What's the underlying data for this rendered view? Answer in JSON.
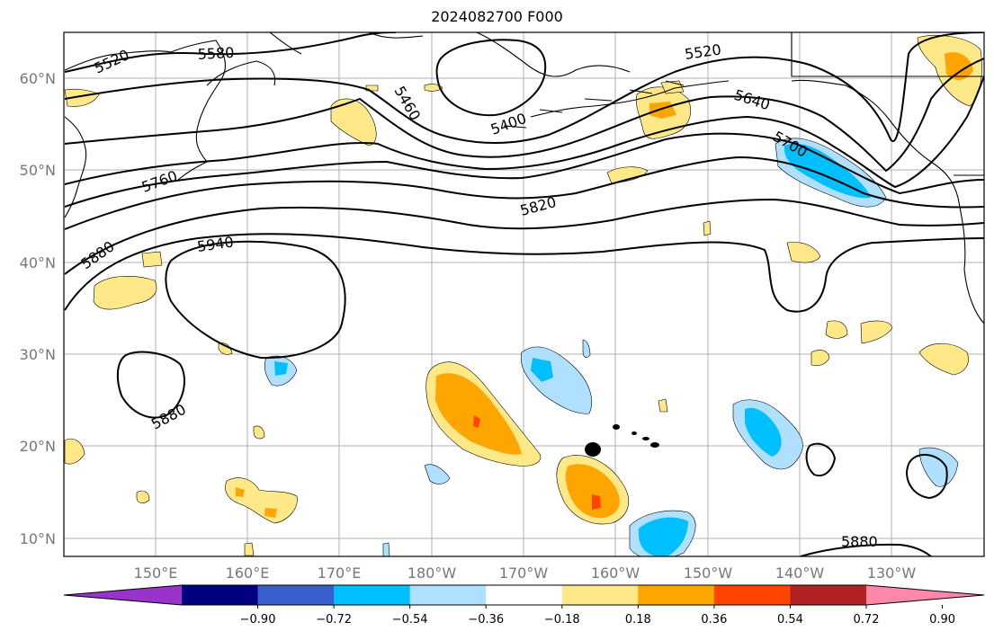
{
  "title": "2024082700 F000",
  "lat_labels": [
    "60°N",
    "50°N",
    "40°N",
    "30°N",
    "20°N",
    "10°N"
  ],
  "lon_labels": [
    "150°E",
    "160°E",
    "170°E",
    "180°W",
    "170°W",
    "160°W",
    "150°W",
    "140°W",
    "130°W"
  ],
  "contour_labels": [
    "5520",
    "5580",
    "5460",
    "5400",
    "5520",
    "5640",
    "5700",
    "5760",
    "5820",
    "5880",
    "5940",
    "5880",
    "5880"
  ],
  "colorbar": {
    "colors": [
      "#9933cc",
      "#000080",
      "#3a5fcd",
      "#00bfff",
      "#b0e0ff",
      "#ffffff",
      "#ffe888",
      "#ffa500",
      "#ff4500",
      "#b22222",
      "#ff88aa"
    ],
    "tick_labels": [
      "−0.90",
      "−0.72",
      "−0.54",
      "−0.36",
      "−0.18",
      "0.18",
      "0.36",
      "0.54",
      "0.72",
      "0.90"
    ]
  },
  "colors": {
    "grid": "#b0b0b0",
    "tick_text": "#777777",
    "contour": "#000000"
  }
}
